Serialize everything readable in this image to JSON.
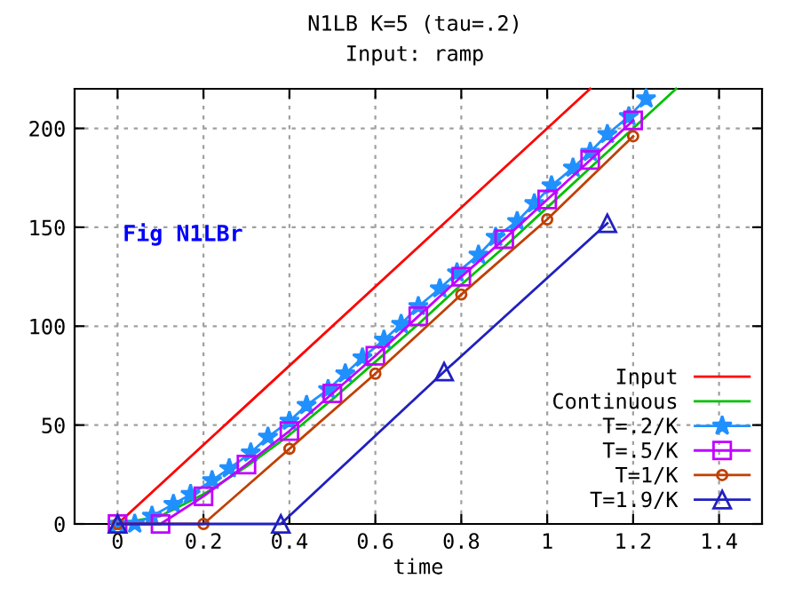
{
  "chart_data": {
    "type": "line",
    "title": "N1LB K=5 (tau=.2)",
    "subtitle": "Input: ramp",
    "xlabel": "time",
    "annotations": [
      "Fig N1LBr"
    ],
    "xlim": [
      -0.1,
      1.5
    ],
    "xticks": [
      0,
      0.2,
      0.4,
      0.6,
      0.8,
      1,
      1.2,
      1.4
    ],
    "ylim": [
      0,
      220
    ],
    "yticks": [
      0,
      50,
      100,
      150,
      200
    ],
    "grid": true,
    "legend": "bottom right",
    "series": [
      {
        "name": "Input",
        "color": "#ff0000",
        "marker": "none",
        "x": [
          0,
          1.1
        ],
        "values": [
          0,
          220
        ]
      },
      {
        "name": "Continuous",
        "color": "#00c000",
        "marker": "none",
        "x": [
          0,
          0.1,
          0.2,
          0.3,
          0.4,
          0.5,
          0.6,
          0.7,
          0.8,
          0.9,
          1.0,
          1.1,
          1.2,
          1.3
        ],
        "values": [
          0,
          4,
          15,
          29,
          45,
          63,
          82,
          101,
          121,
          140,
          160,
          180,
          200,
          220
        ]
      },
      {
        "name": "T=.2/K",
        "color": "#2090ff",
        "marker": "star",
        "x": [
          0,
          0.04,
          0.08,
          0.13,
          0.17,
          0.22,
          0.26,
          0.31,
          0.35,
          0.4,
          0.44,
          0.49,
          0.53,
          0.57,
          0.62,
          0.66,
          0.7,
          0.75,
          0.79,
          0.84,
          0.88,
          0.93,
          0.97,
          1.01,
          1.06,
          1.1,
          1.14,
          1.19,
          1.23
        ],
        "values": [
          0,
          0,
          4,
          10,
          15,
          22,
          28,
          36,
          44,
          52,
          60,
          68,
          76,
          84,
          93,
          101,
          110,
          119,
          127,
          136,
          145,
          153,
          162,
          171,
          180,
          188,
          197,
          206,
          215
        ]
      },
      {
        "name": "T=.5/K",
        "color": "#c000ff",
        "marker": "square",
        "x": [
          0,
          0.1,
          0.2,
          0.3,
          0.4,
          0.5,
          0.6,
          0.7,
          0.8,
          0.9,
          1.0,
          1.1,
          1.2
        ],
        "values": [
          0,
          0,
          14,
          30,
          47,
          66,
          85,
          105,
          125,
          144,
          164,
          184,
          204
        ]
      },
      {
        "name": "T=1/K",
        "color": "#c04000",
        "marker": "circle",
        "x": [
          0,
          0.2,
          0.4,
          0.6,
          0.8,
          1.0,
          1.2
        ],
        "values": [
          0,
          0,
          38,
          76,
          116,
          154,
          196
        ]
      },
      {
        "name": "T=1.9/K",
        "color": "#2020c0",
        "marker": "triangle",
        "x": [
          0,
          0.38,
          0.76,
          1.14
        ],
        "values": [
          0,
          0,
          77,
          152
        ]
      }
    ]
  }
}
